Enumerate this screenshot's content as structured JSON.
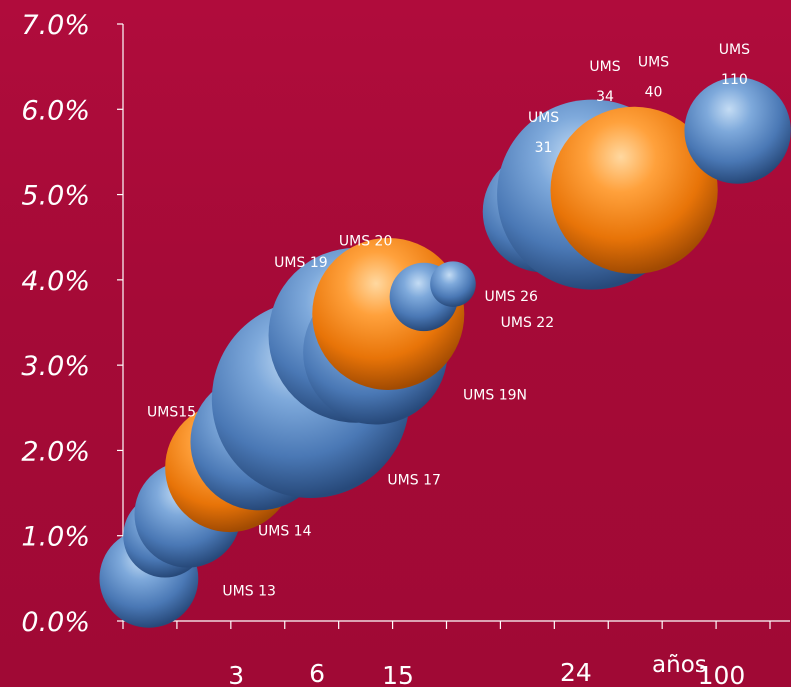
{
  "colors": {
    "background": "#a8093a",
    "blue_bubble": "#4f86c6",
    "orange_bubble": "#f07d14",
    "text": "#ffffff"
  },
  "chart_data": {
    "type": "scatter",
    "title": "",
    "xlabel": "años",
    "ylabel": "",
    "ylim": [
      0,
      7
    ],
    "y_ticks": [
      "0.0%",
      "1.0%",
      "2.0%",
      "3.0%",
      "4.0%",
      "5.0%",
      "6.0%",
      "7.0%"
    ],
    "x_tick_labels": [
      "3",
      "6",
      "15",
      "24",
      "100"
    ],
    "x_tick_positions": [
      3.5,
      6,
      8.5,
      14,
      18.5
    ],
    "x_minor_ticks": 13,
    "grid": false,
    "legend": "none",
    "bubbles": [
      {
        "label": "UMS 13",
        "x": 0.8,
        "y": 0.5,
        "size": 1.3,
        "color": "blue"
      },
      {
        "label": "UMS 14",
        "x": 1.3,
        "y": 1.0,
        "size": 1.1,
        "color": "blue"
      },
      {
        "label": "UMS 14",
        "x": 2.0,
        "y": 1.25,
        "size": 1.4,
        "color": "blue"
      },
      {
        "label": "UMS15",
        "x": 3.3,
        "y": 1.8,
        "size": 1.7,
        "color": "orange"
      },
      {
        "label": "UMS 17",
        "x": 4.2,
        "y": 2.1,
        "size": 1.8,
        "color": "blue"
      },
      {
        "label": "UMS 17",
        "x": 5.8,
        "y": 2.6,
        "size": 2.6,
        "color": "blue"
      },
      {
        "label": "UMS 19",
        "x": 7.2,
        "y": 3.35,
        "size": 2.3,
        "color": "blue"
      },
      {
        "label": "UMS 19N",
        "x": 7.8,
        "y": 3.15,
        "size": 1.9,
        "color": "blue"
      },
      {
        "label": "UMS 20",
        "x": 8.2,
        "y": 3.6,
        "size": 2.0,
        "color": "orange"
      },
      {
        "label": "UMS 22",
        "x": 9.3,
        "y": 3.8,
        "size": 0.9,
        "color": "blue"
      },
      {
        "label": "UMS 26",
        "x": 10.2,
        "y": 3.95,
        "size": 0.6,
        "color": "blue"
      },
      {
        "label": "UMS 31",
        "x": 13.0,
        "y": 4.8,
        "size": 1.6,
        "color": "blue"
      },
      {
        "label": "UMS 34",
        "x": 14.5,
        "y": 5.0,
        "size": 2.5,
        "color": "blue"
      },
      {
        "label": "UMS 40",
        "x": 15.8,
        "y": 5.05,
        "size": 2.2,
        "color": "orange"
      },
      {
        "label": "UMS 110",
        "x": 19.0,
        "y": 5.75,
        "size": 1.4,
        "color": "blue"
      }
    ],
    "annotations": [
      {
        "lines": [
          "UMS",
          "110"
        ],
        "x": 18.9,
        "y": 6.65
      },
      {
        "lines": [
          "UMS",
          "40"
        ],
        "x": 16.4,
        "y": 6.5
      },
      {
        "lines": [
          "UMS",
          "34"
        ],
        "x": 14.9,
        "y": 6.45
      },
      {
        "lines": [
          "UMS",
          "31"
        ],
        "x": 13.0,
        "y": 5.85
      },
      {
        "lines": [
          "UMS 20"
        ],
        "x": 7.5,
        "y": 4.4
      },
      {
        "lines": [
          "UMS 19"
        ],
        "x": 5.5,
        "y": 4.15
      },
      {
        "lines": [
          "UMS 26"
        ],
        "x": 12.0,
        "y": 3.75
      },
      {
        "lines": [
          "UMS 22"
        ],
        "x": 12.5,
        "y": 3.45
      },
      {
        "lines": [
          "UMS 19N"
        ],
        "x": 11.5,
        "y": 2.6
      },
      {
        "lines": [
          "UMS15"
        ],
        "x": 1.5,
        "y": 2.4
      },
      {
        "lines": [
          "UMS 17"
        ],
        "x": 9.0,
        "y": 1.6
      },
      {
        "lines": [
          "UMS 14"
        ],
        "x": 5.0,
        "y": 1.0
      },
      {
        "lines": [
          "UMS 13"
        ],
        "x": 3.9,
        "y": 0.3
      }
    ]
  }
}
